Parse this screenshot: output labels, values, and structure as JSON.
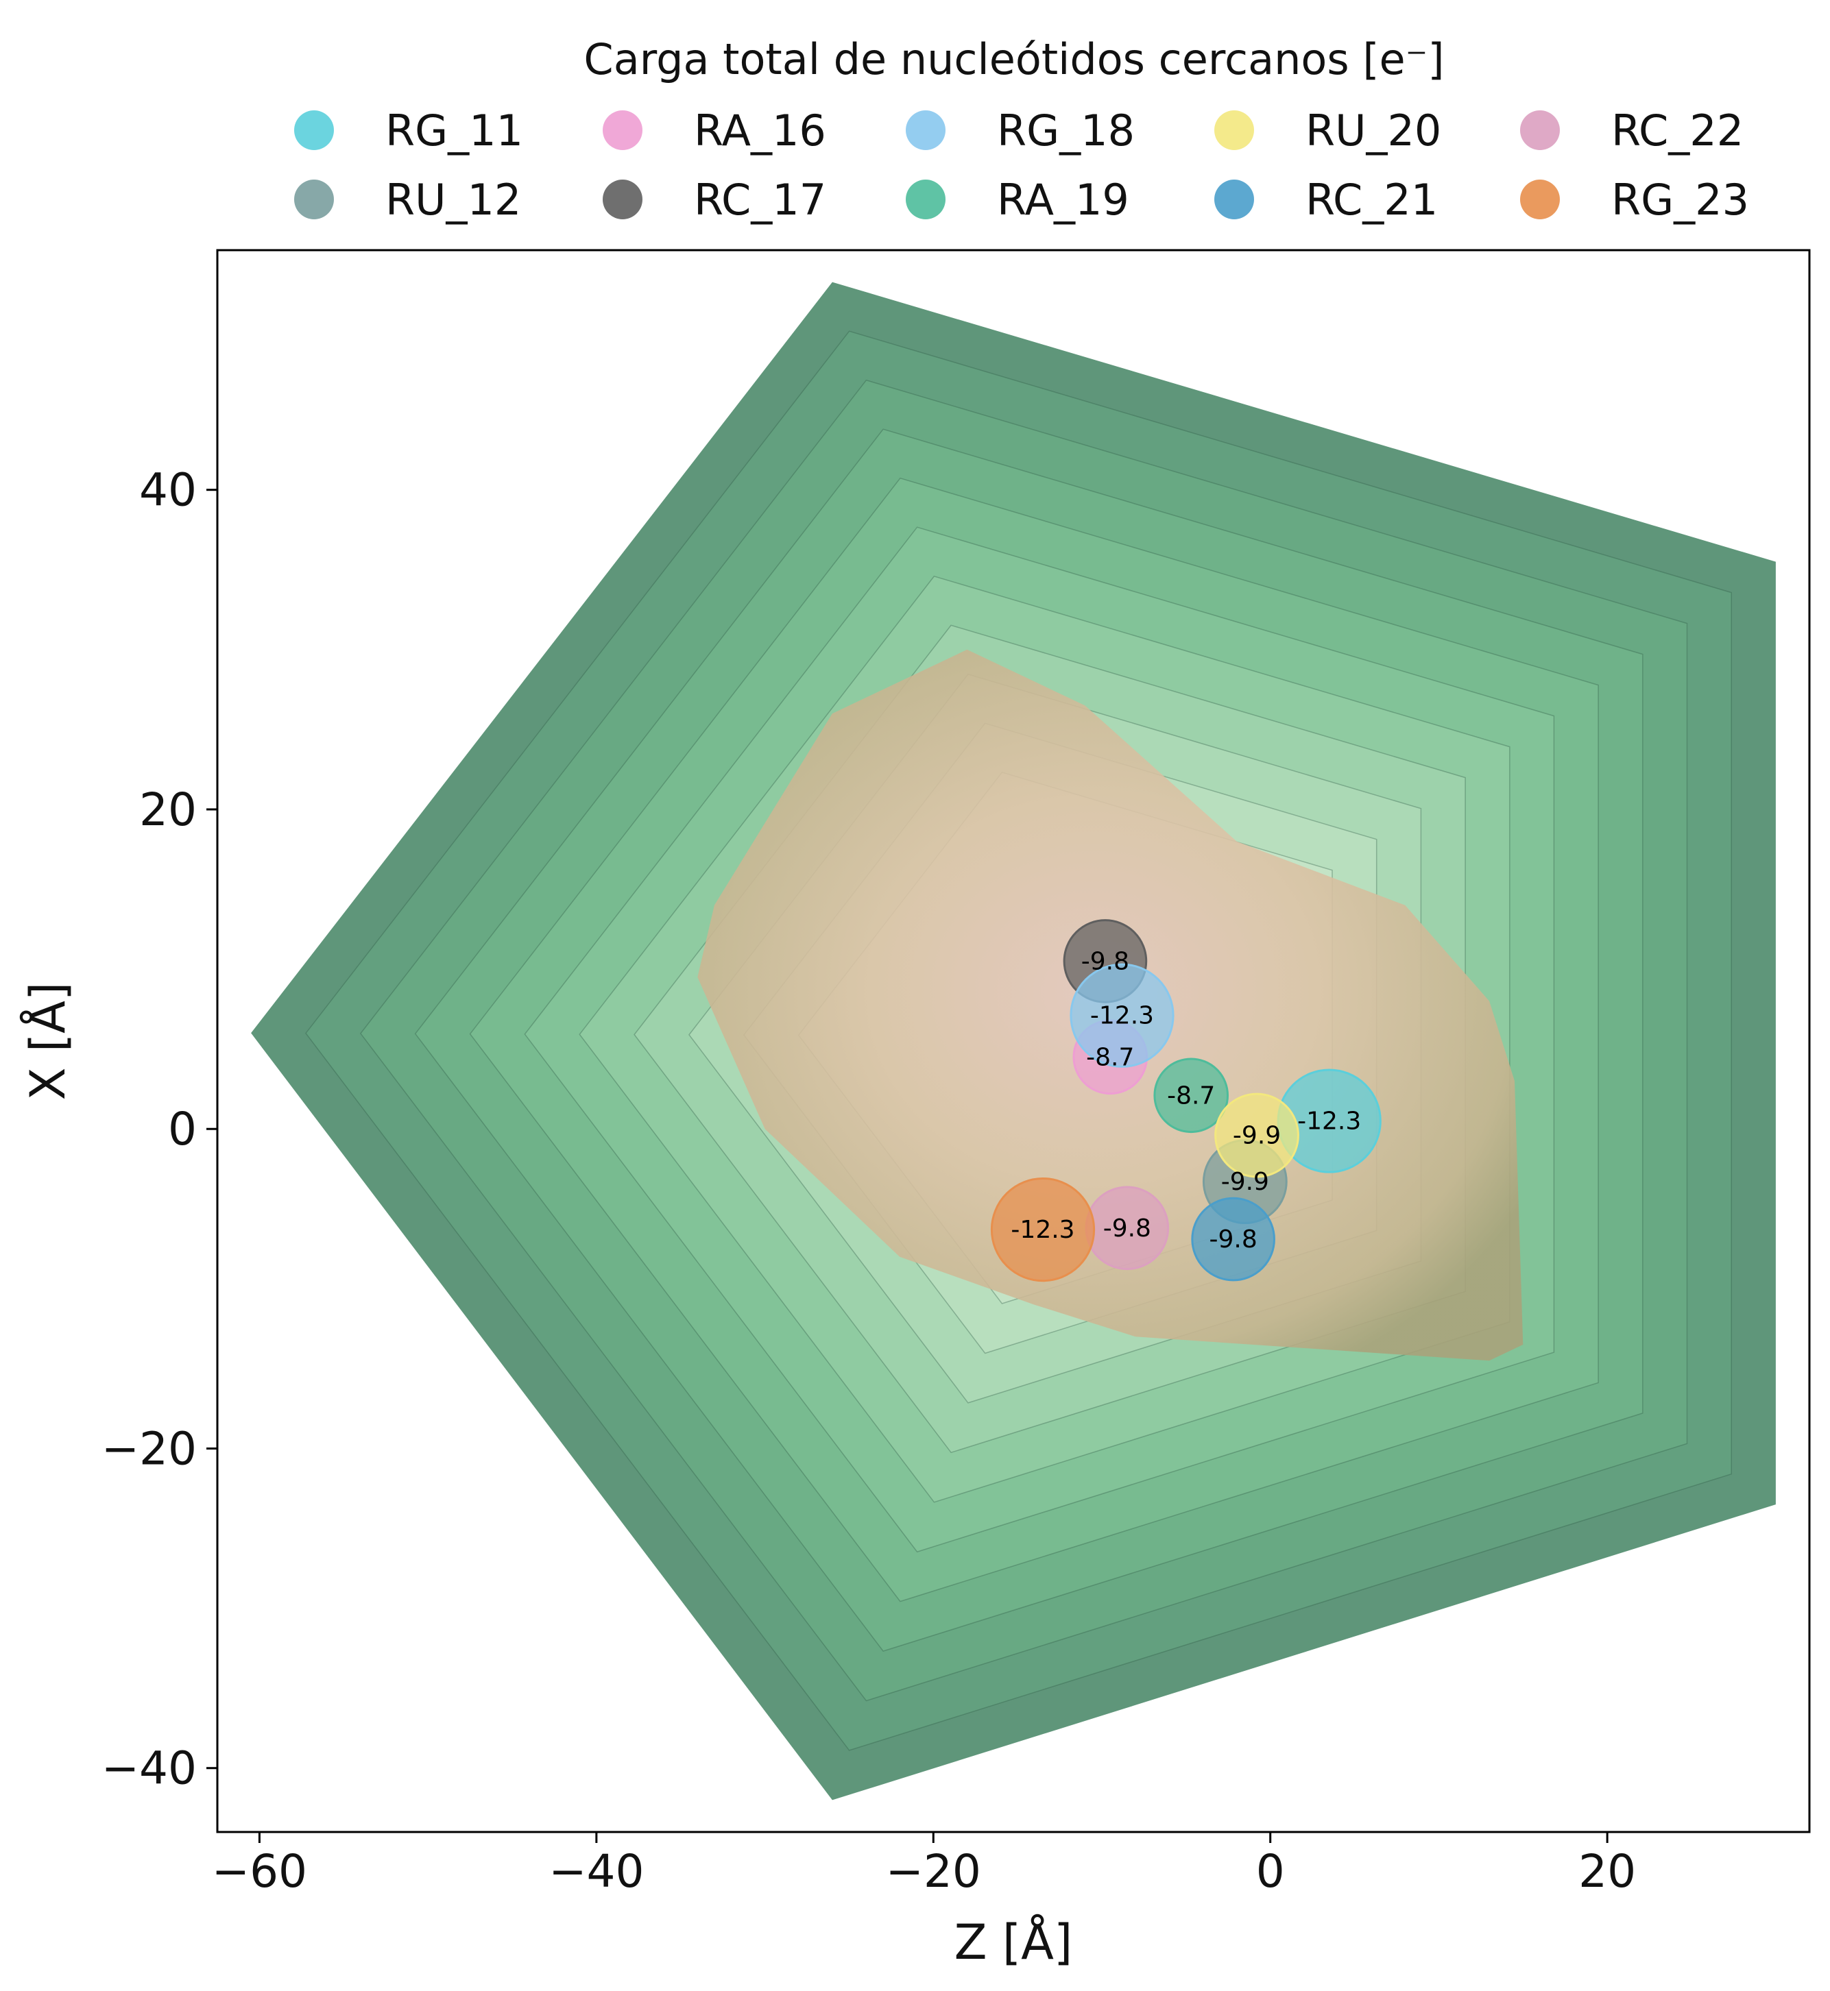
{
  "chart_data": {
    "type": "scatter",
    "title": "",
    "xlabel": "Z [Å]",
    "ylabel": "X [Å]",
    "xlim": [
      -62.5,
      32
    ],
    "ylim": [
      -44,
      55
    ],
    "xticks": [
      -60,
      -40,
      -20,
      0,
      20
    ],
    "yticks": [
      -40,
      -20,
      0,
      20,
      40
    ],
    "xtick_labels": [
      "−60",
      "−40",
      "−20",
      "0",
      "20"
    ],
    "ytick_labels": [
      "−40",
      "−20",
      "0",
      "20",
      "40"
    ],
    "grid": false,
    "legend": {
      "title": "Carga total de nucleótidos cercanos [e⁻]",
      "placement": "top-center",
      "columns": 5
    },
    "background_regions": [
      {
        "name": "outer-pentagon-contour",
        "color": "#5f967a",
        "vertices_zx": [
          [
            -26,
            53
          ],
          [
            30,
            35.5
          ],
          [
            30,
            -23.5
          ],
          [
            -26,
            -42
          ],
          [
            -60.5,
            6
          ]
        ]
      },
      {
        "name": "inner-tan-region",
        "color": "#bba886",
        "vertices_zx": [
          [
            -18,
            30
          ],
          [
            -11,
            26.5
          ],
          [
            -2,
            18
          ],
          [
            8,
            14
          ],
          [
            13,
            8
          ],
          [
            14.5,
            3
          ],
          [
            15,
            -13.5
          ],
          [
            13,
            -14.5
          ],
          [
            -8,
            -13
          ],
          [
            -14,
            -11
          ],
          [
            -22,
            -8
          ],
          [
            -30,
            0
          ],
          [
            -34,
            9.5
          ],
          [
            -33,
            14
          ],
          [
            -26,
            26
          ]
        ]
      }
    ],
    "series": [
      {
        "name": "RG_11",
        "color": "#5bcfdb",
        "z": 3.5,
        "x": 0.5,
        "value": -12.3,
        "label": "-12.3"
      },
      {
        "name": "RU_12",
        "color": "#7a9e9e",
        "z": -1.5,
        "x": -3.3,
        "value": -9.9,
        "label": "-9.9"
      },
      {
        "name": "RA_16",
        "color": "#ee9ed3",
        "z": -9.5,
        "x": 4.5,
        "value": -8.7,
        "label": "-8.7"
      },
      {
        "name": "RC_17",
        "color": "#5f5f5f",
        "z": -9.8,
        "x": 10.5,
        "value": -9.8,
        "label": "-9.8"
      },
      {
        "name": "RG_18",
        "color": "#88c8ee",
        "z": -8.8,
        "x": 7.1,
        "value": -12.3,
        "label": "-12.3"
      },
      {
        "name": "RA_19",
        "color": "#4ebc9b",
        "z": -4.7,
        "x": 2.1,
        "value": -8.7,
        "label": "-8.7"
      },
      {
        "name": "RU_20",
        "color": "#f3e87e",
        "z": -0.8,
        "x": -0.4,
        "value": -9.9,
        "label": "-9.9"
      },
      {
        "name": "RC_21",
        "color": "#4a9ecb",
        "z": -2.2,
        "x": -6.9,
        "value": -9.8,
        "label": "-9.8"
      },
      {
        "name": "RC_22",
        "color": "#dca0c0",
        "z": -8.5,
        "x": -6.2,
        "value": -9.8,
        "label": "-9.8"
      },
      {
        "name": "RG_23",
        "color": "#e88f4d",
        "z": -13.5,
        "x": -6.3,
        "value": -12.3,
        "label": "-12.3"
      }
    ]
  }
}
